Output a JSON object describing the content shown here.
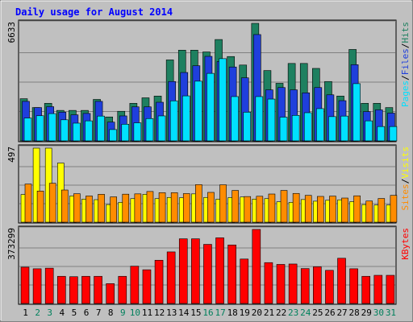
{
  "chart_data": {
    "type": "bar",
    "title": "Daily usage for August 2014",
    "categories": [
      "1",
      "2",
      "3",
      "4",
      "5",
      "6",
      "7",
      "8",
      "9",
      "10",
      "11",
      "12",
      "13",
      "14",
      "15",
      "16",
      "17",
      "18",
      "19",
      "20",
      "21",
      "22",
      "23",
      "24",
      "25",
      "26",
      "27",
      "28",
      "29",
      "30",
      "31"
    ],
    "weekend_days": [
      "2",
      "3",
      "9",
      "10",
      "16",
      "17",
      "23",
      "24",
      "30",
      "31"
    ],
    "panels": [
      {
        "name": "requests",
        "ymax_label": "6633",
        "ymax": 6633,
        "legend": [
          "Pages",
          "/",
          "Files",
          "/",
          "Hits"
        ],
        "series": [
          {
            "name": "Hits",
            "color": "#1e8060",
            "values": [
              2380,
              1880,
              2120,
              1720,
              1720,
              1720,
              2340,
              1350,
              1670,
              2120,
              2430,
              2530,
              4570,
              5120,
              5120,
              5020,
              5720,
              4760,
              4280,
              6633,
              3970,
              3250,
              4370,
              4370,
              4090,
              3350,
              2530,
              5160,
              2120,
              2120,
              1880
            ]
          },
          {
            "name": "Files",
            "color": "#1f3fdc",
            "values": [
              2230,
              1880,
              1930,
              1620,
              1470,
              1550,
              2230,
              1060,
              1410,
              1920,
              1920,
              2180,
              3350,
              3860,
              4240,
              4770,
              4480,
              4170,
              3560,
              6000,
              2880,
              3010,
              2880,
              2710,
              3010,
              2600,
              2270,
              4300,
              1650,
              1750,
              1570
            ]
          },
          {
            "name": "Pages",
            "color": "#00e0ff",
            "values": [
              1290,
              1420,
              1540,
              1190,
              1000,
              1130,
              1400,
              640,
              940,
              1020,
              1260,
              1410,
              2260,
              2540,
              3370,
              3810,
              4640,
              2500,
              1620,
              2500,
              2360,
              1340,
              1440,
              1590,
              1820,
              1370,
              1400,
              3230,
              1130,
              810,
              810
            ]
          }
        ]
      },
      {
        "name": "visits",
        "ymax_label": "497",
        "ymax": 497,
        "legend": [
          "Sites",
          "/",
          "Visits"
        ],
        "series": [
          {
            "name": "Visits",
            "color": "#ffff00",
            "values": [
              186,
              497,
              497,
              397,
              176,
              155,
              151,
              118,
              133,
              158,
              187,
              158,
              166,
              164,
              190,
              166,
              154,
              165,
              169,
              155,
              158,
              137,
              133,
              152,
              141,
              147,
              150,
              138,
              118,
              115,
              115
            ]
          },
          {
            "name": "Sites",
            "color": "#ff8c00",
            "values": [
              256,
              209,
              261,
              216,
              191,
              176,
              187,
              170,
              188,
              190,
              206,
              198,
              198,
              192,
              252,
              200,
              251,
              213,
              172,
              174,
              189,
              213,
              193,
              180,
              173,
              175,
              162,
              177,
              142,
              159,
              180
            ]
          }
        ]
      },
      {
        "name": "kbytes",
        "ymax_label": "373299",
        "ymax": 373299,
        "legend": [
          "KBytes"
        ],
        "series": [
          {
            "name": "KBytes",
            "color": "#ff0000",
            "values": [
              183000,
              175000,
              178000,
              137000,
              135000,
              137000,
              137000,
              100000,
              137000,
              188000,
              170000,
              218000,
              260000,
              326000,
              326000,
              298000,
              331000,
              295000,
              224000,
              373299,
              206000,
              197000,
              199000,
              176000,
              185000,
              167000,
              228000,
              175000,
              137000,
              142000,
              142000
            ]
          }
        ]
      }
    ],
    "colors": {
      "background": "#ffffff",
      "outer_frame": "#c0c0c0",
      "plot_background": "#c0c0c0",
      "title": "#0000ff",
      "weekday_label": "#000000",
      "weekend_label": "#00805c",
      "gridline": "#808080"
    }
  }
}
